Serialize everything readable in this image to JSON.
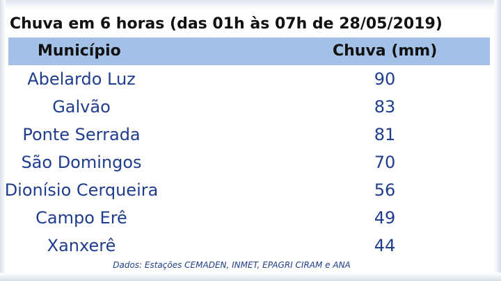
{
  "title": "Chuva em 6 horas (das 01h às 07h de 28/05/2019)",
  "table": {
    "headers": {
      "municipio": "Município",
      "chuva": "Chuva (mm)"
    },
    "rows": [
      {
        "municipio": "Abelardo Luz",
        "chuva": "90"
      },
      {
        "municipio": "Galvão",
        "chuva": "83"
      },
      {
        "municipio": "Ponte Serrada",
        "chuva": "81"
      },
      {
        "municipio": "São Domingos",
        "chuva": "70"
      },
      {
        "municipio": "Dionísio Cerqueira",
        "chuva": "56"
      },
      {
        "municipio": "Campo Erê",
        "chuva": "49"
      },
      {
        "municipio": "Xanxerê",
        "chuva": "44"
      }
    ]
  },
  "source": "Dados: Estações CEMADEN, INMET, EPAGRI CIRAM e ANA",
  "colors": {
    "header_bg": "#a3c1e6",
    "text_blue": "#1f3d8c",
    "title_text": "#111111"
  }
}
